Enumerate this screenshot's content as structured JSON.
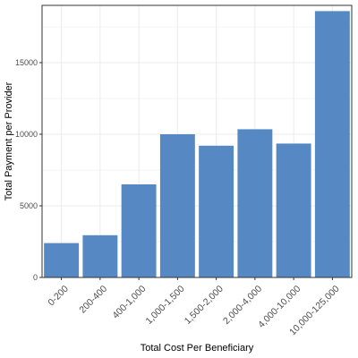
{
  "chart_data": {
    "type": "bar",
    "categories": [
      "0-200",
      "200-400",
      "400-1,000",
      "1,000-1,500",
      "1,500-2,000",
      "2,000-4,000",
      "4,000-10,000",
      "10,000-125,000"
    ],
    "values": [
      2400,
      2950,
      6500,
      10000,
      9200,
      10350,
      9350,
      18600
    ],
    "title": "",
    "xlabel": "Total Cost Per Beneficiary",
    "ylabel": "Total Payment per Provider",
    "y_ticks": [
      0,
      5000,
      10000,
      15000
    ],
    "ylim": [
      0,
      19000
    ],
    "grid": true,
    "bar_color": "#5689C3",
    "panel_border_color": "#333333",
    "grid_color": "#EBEBEB"
  }
}
